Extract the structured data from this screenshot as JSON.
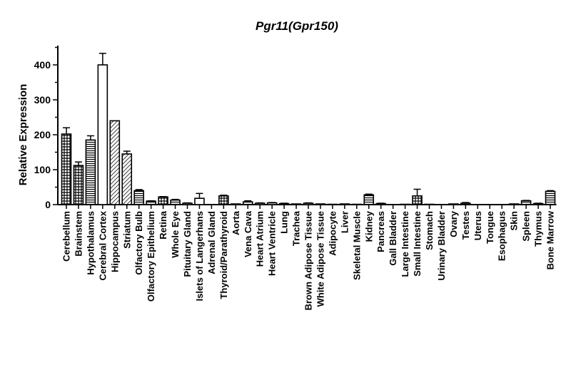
{
  "chart_data": {
    "type": "bar",
    "title": "Pgr11(Gpr150)",
    "xlabel": "",
    "ylabel": "Relative Expression",
    "ylim": [
      0,
      480
    ],
    "yticks": [
      0,
      100,
      200,
      300,
      400
    ],
    "grid": false,
    "legend": "none",
    "error_bars": true,
    "categories": [
      "Cerebellum",
      "Brainstem",
      "Hypothalamus",
      "Cerebral Cortex",
      "Hippocampus",
      "Striatum",
      "Olfactory Bulb",
      "Olfactory Epithelium",
      "Retina",
      "Whole Eye",
      "Pituitary Gland",
      "Islets of Langerhans",
      "Adrenal Gland",
      "Thyroid/Parathyroid",
      "Aorta",
      "Vena Cava",
      "Heart Atrium",
      "Heart Ventricle",
      "Lung",
      "Trachea",
      "Brown Adipose Tissue",
      "White Adipose Tissue",
      "Adipocyte",
      "Liver",
      "Skeletal Muscle",
      "Kidney",
      "Pancreas",
      "Gall Bladder",
      "Large Intestine",
      "Small Intestine",
      "Stomach",
      "Urinary Bladder",
      "Ovary",
      "Testes",
      "Uterus",
      "Tongue",
      "Esophagus",
      "Skin",
      "Spleen",
      "Thymus",
      "Bone Marrow"
    ],
    "values": [
      202,
      112,
      185,
      400,
      240,
      145,
      40,
      10,
      22,
      13,
      4,
      18,
      0,
      25,
      2,
      8,
      4,
      5,
      3,
      2,
      4,
      2,
      1,
      2,
      1,
      28,
      3,
      0,
      1,
      25,
      1,
      0,
      2,
      4,
      0,
      0,
      0,
      2,
      11,
      3,
      38
    ],
    "errors": [
      18,
      10,
      12,
      33,
      0,
      8,
      3,
      1,
      1,
      2,
      1,
      14,
      0,
      2,
      0,
      3,
      1,
      1,
      1,
      0,
      1,
      0,
      0,
      0,
      0,
      2,
      1,
      0,
      0,
      19,
      0,
      0,
      0,
      2,
      0,
      0,
      0,
      0,
      1,
      1,
      2
    ],
    "fill_patterns": [
      "crosshatch",
      "crosshatch",
      "hlines",
      "white",
      "diagonal",
      "diagonal",
      "hlines",
      "hlines",
      "crosshatch",
      "hlines",
      "white",
      "white",
      "white",
      "crosshatch",
      "white",
      "hlines",
      "white",
      "white",
      "white",
      "white",
      "white",
      "white",
      "white",
      "white",
      "white",
      "hlines",
      "white",
      "white",
      "white",
      "crosshatch",
      "white",
      "white",
      "white",
      "hlines",
      "white",
      "white",
      "white",
      "white",
      "hlines",
      "white",
      "hlines"
    ]
  }
}
